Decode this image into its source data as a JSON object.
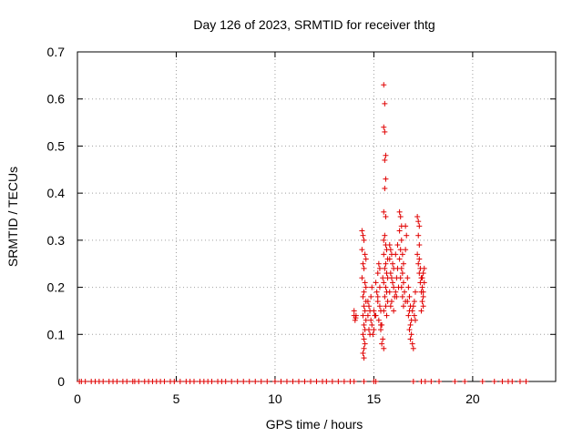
{
  "chart_data": {
    "type": "scatter",
    "title": "Day 126 of 2023, SRMTID for receiver thtg",
    "xlabel": "GPS time / hours",
    "ylabel": "SRMTID / TECUs",
    "xlim": [
      0,
      24.2
    ],
    "ylim": [
      0,
      0.7
    ],
    "xticks": [
      0,
      5,
      10,
      15,
      20
    ],
    "yticks": [
      0,
      0.1,
      0.2,
      0.3,
      0.4,
      0.5,
      0.6,
      0.7
    ],
    "xtick_labels": [
      "0",
      "5",
      "10",
      "15",
      "20"
    ],
    "ytick_labels": [
      "0",
      "0.1",
      "0.2",
      "0.3",
      "0.4",
      "0.5",
      "0.6",
      "0.7"
    ],
    "grid": true,
    "marker": "+",
    "color": "#e00000",
    "zero_x": [
      0.1,
      0.2,
      0.4,
      0.7,
      0.9,
      1.1,
      1.3,
      1.6,
      1.8,
      2.0,
      2.3,
      2.5,
      2.8,
      2.9,
      3.1,
      3.4,
      3.6,
      3.8,
      4.0,
      4.2,
      4.4,
      4.7,
      4.9,
      5.2,
      5.5,
      5.7,
      5.9,
      6.2,
      6.4,
      6.6,
      6.8,
      7.1,
      7.3,
      7.5,
      7.8,
      8.1,
      8.4,
      8.7,
      9.0,
      9.3,
      9.6,
      10.0,
      10.3,
      10.6,
      10.9,
      11.2,
      11.5,
      11.8,
      12.1,
      12.4,
      12.6,
      12.9,
      13.2,
      13.5,
      13.8,
      14.0,
      14.5,
      15.0,
      15.1,
      17.0,
      17.4,
      17.6,
      17.9,
      18.3,
      19.1,
      19.6,
      20.5,
      21.1,
      21.5,
      21.8,
      22.0,
      22.4,
      22.7
    ],
    "points": [
      [
        14.0,
        0.14
      ],
      [
        14.05,
        0.13
      ],
      [
        14.1,
        0.14
      ],
      [
        14.0,
        0.15
      ],
      [
        14.08,
        0.135
      ],
      [
        14.4,
        0.32
      ],
      [
        14.45,
        0.31
      ],
      [
        14.5,
        0.3
      ],
      [
        14.4,
        0.28
      ],
      [
        14.55,
        0.27
      ],
      [
        14.6,
        0.26
      ],
      [
        14.45,
        0.25
      ],
      [
        14.5,
        0.24
      ],
      [
        14.4,
        0.22
      ],
      [
        14.55,
        0.21
      ],
      [
        14.6,
        0.2
      ],
      [
        14.5,
        0.19
      ],
      [
        14.45,
        0.18
      ],
      [
        14.6,
        0.17
      ],
      [
        14.5,
        0.16
      ],
      [
        14.55,
        0.15
      ],
      [
        14.45,
        0.14
      ],
      [
        14.6,
        0.13
      ],
      [
        14.5,
        0.12
      ],
      [
        14.55,
        0.11
      ],
      [
        14.45,
        0.1
      ],
      [
        14.5,
        0.09
      ],
      [
        14.55,
        0.08
      ],
      [
        14.5,
        0.07
      ],
      [
        14.45,
        0.06
      ],
      [
        14.5,
        0.05
      ],
      [
        14.7,
        0.17
      ],
      [
        14.75,
        0.16
      ],
      [
        14.8,
        0.15
      ],
      [
        14.7,
        0.14
      ],
      [
        14.85,
        0.13
      ],
      [
        14.9,
        0.12
      ],
      [
        14.75,
        0.11
      ],
      [
        14.8,
        0.1
      ],
      [
        14.95,
        0.1
      ],
      [
        15.0,
        0.11
      ],
      [
        14.85,
        0.18
      ],
      [
        14.9,
        0.2
      ],
      [
        15.0,
        0.15
      ],
      [
        15.05,
        0.14
      ],
      [
        15.1,
        0.21
      ],
      [
        15.2,
        0.23
      ],
      [
        15.25,
        0.25
      ],
      [
        15.3,
        0.24
      ],
      [
        15.15,
        0.19
      ],
      [
        15.2,
        0.18
      ],
      [
        15.3,
        0.16
      ],
      [
        15.35,
        0.15
      ],
      [
        15.25,
        0.13
      ],
      [
        15.4,
        0.12
      ],
      [
        15.35,
        0.11
      ],
      [
        15.45,
        0.09
      ],
      [
        15.4,
        0.08
      ],
      [
        15.5,
        0.07
      ],
      [
        15.3,
        0.2
      ],
      [
        15.45,
        0.22
      ],
      [
        15.2,
        0.17
      ],
      [
        15.1,
        0.14
      ],
      [
        15.35,
        0.12
      ],
      [
        15.5,
        0.63
      ],
      [
        15.55,
        0.59
      ],
      [
        15.5,
        0.54
      ],
      [
        15.55,
        0.53
      ],
      [
        15.6,
        0.48
      ],
      [
        15.55,
        0.47
      ],
      [
        15.6,
        0.43
      ],
      [
        15.55,
        0.41
      ],
      [
        15.5,
        0.36
      ],
      [
        15.6,
        0.35
      ],
      [
        15.55,
        0.31
      ],
      [
        15.5,
        0.3
      ],
      [
        15.6,
        0.29
      ],
      [
        15.65,
        0.28
      ],
      [
        15.5,
        0.27
      ],
      [
        15.7,
        0.26
      ],
      [
        15.6,
        0.25
      ],
      [
        15.55,
        0.24
      ],
      [
        15.65,
        0.23
      ],
      [
        15.7,
        0.22
      ],
      [
        15.5,
        0.21
      ],
      [
        15.6,
        0.2
      ],
      [
        15.65,
        0.19
      ],
      [
        15.55,
        0.18
      ],
      [
        15.7,
        0.17
      ],
      [
        15.6,
        0.16
      ],
      [
        15.5,
        0.15
      ],
      [
        15.65,
        0.14
      ],
      [
        15.8,
        0.29
      ],
      [
        15.85,
        0.28
      ],
      [
        15.9,
        0.27
      ],
      [
        15.8,
        0.26
      ],
      [
        15.95,
        0.25
      ],
      [
        16.0,
        0.24
      ],
      [
        15.85,
        0.23
      ],
      [
        15.9,
        0.22
      ],
      [
        15.95,
        0.21
      ],
      [
        16.0,
        0.2
      ],
      [
        15.8,
        0.19
      ],
      [
        16.05,
        0.18
      ],
      [
        15.9,
        0.17
      ],
      [
        15.85,
        0.16
      ],
      [
        16.0,
        0.15
      ],
      [
        16.1,
        0.19
      ],
      [
        16.15,
        0.22
      ],
      [
        16.2,
        0.24
      ],
      [
        16.1,
        0.27
      ],
      [
        16.2,
        0.29
      ],
      [
        16.15,
        0.18
      ],
      [
        16.25,
        0.2
      ],
      [
        16.3,
        0.36
      ],
      [
        16.35,
        0.35
      ],
      [
        16.4,
        0.33
      ],
      [
        16.3,
        0.32
      ],
      [
        16.4,
        0.3
      ],
      [
        16.35,
        0.28
      ],
      [
        16.45,
        0.27
      ],
      [
        16.3,
        0.26
      ],
      [
        16.5,
        0.25
      ],
      [
        16.4,
        0.24
      ],
      [
        16.45,
        0.23
      ],
      [
        16.35,
        0.22
      ],
      [
        16.5,
        0.21
      ],
      [
        16.4,
        0.2
      ],
      [
        16.55,
        0.19
      ],
      [
        16.45,
        0.18
      ],
      [
        16.6,
        0.17
      ],
      [
        16.5,
        0.16
      ],
      [
        16.6,
        0.28
      ],
      [
        16.65,
        0.31
      ],
      [
        16.6,
        0.33
      ],
      [
        16.7,
        0.22
      ],
      [
        16.75,
        0.2
      ],
      [
        16.8,
        0.18
      ],
      [
        16.7,
        0.17
      ],
      [
        16.85,
        0.16
      ],
      [
        16.8,
        0.15
      ],
      [
        16.75,
        0.14
      ],
      [
        16.9,
        0.13
      ],
      [
        16.85,
        0.12
      ],
      [
        16.8,
        0.11
      ],
      [
        16.9,
        0.1
      ],
      [
        16.85,
        0.09
      ],
      [
        16.95,
        0.08
      ],
      [
        17.0,
        0.07
      ],
      [
        16.95,
        0.15
      ],
      [
        17.0,
        0.16
      ],
      [
        17.05,
        0.14
      ],
      [
        17.1,
        0.13
      ],
      [
        17.05,
        0.17
      ],
      [
        17.1,
        0.19
      ],
      [
        17.2,
        0.35
      ],
      [
        17.25,
        0.34
      ],
      [
        17.3,
        0.33
      ],
      [
        17.25,
        0.31
      ],
      [
        17.3,
        0.29
      ],
      [
        17.2,
        0.27
      ],
      [
        17.3,
        0.26
      ],
      [
        17.25,
        0.25
      ],
      [
        17.35,
        0.24
      ],
      [
        17.3,
        0.23
      ],
      [
        17.4,
        0.22
      ],
      [
        17.35,
        0.21
      ],
      [
        17.45,
        0.2
      ],
      [
        17.4,
        0.19
      ],
      [
        17.5,
        0.18
      ],
      [
        17.45,
        0.17
      ],
      [
        17.5,
        0.16
      ],
      [
        17.55,
        0.21
      ],
      [
        17.5,
        0.23
      ],
      [
        17.55,
        0.24
      ],
      [
        17.45,
        0.22
      ],
      [
        17.4,
        0.15
      ],
      [
        17.5,
        0.19
      ]
    ]
  }
}
